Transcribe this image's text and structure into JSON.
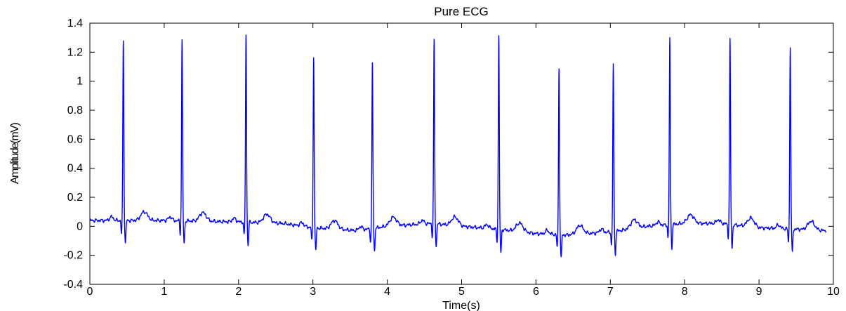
{
  "chart_data": {
    "type": "line",
    "title": "Pure ECG",
    "xlabel": "Time(s)",
    "ylabel": "Amplitude(mV)",
    "xlim": [
      0,
      10
    ],
    "ylim": [
      -0.4,
      1.4
    ],
    "x_ticks": [
      0,
      1,
      2,
      3,
      4,
      5,
      6,
      7,
      8,
      9,
      10
    ],
    "y_ticks": [
      -0.4,
      -0.2,
      0,
      0.2,
      0.4,
      0.6,
      0.8,
      1,
      1.2,
      1.4
    ],
    "x_tick_labels": [
      "0",
      "1",
      "2",
      "3",
      "4",
      "5",
      "6",
      "7",
      "8",
      "9",
      "10"
    ],
    "y_tick_labels": [
      "-0.4",
      "-0.2",
      "0",
      "0.2",
      "0.4",
      "0.6",
      "0.8",
      "1",
      "1.2",
      "1.4"
    ],
    "grid": false,
    "line_color": "#0000ff",
    "duration_s": 9.9,
    "r_peaks": [
      {
        "t": 0.45,
        "amp": 1.28
      },
      {
        "t": 1.24,
        "amp": 1.28
      },
      {
        "t": 2.1,
        "amp": 1.32
      },
      {
        "t": 3.01,
        "amp": 1.17
      },
      {
        "t": 3.8,
        "amp": 1.12
      },
      {
        "t": 4.63,
        "amp": 1.28
      },
      {
        "t": 5.5,
        "amp": 1.31
      },
      {
        "t": 6.31,
        "amp": 1.09
      },
      {
        "t": 7.04,
        "amp": 1.12
      },
      {
        "t": 7.8,
        "amp": 1.3
      },
      {
        "t": 8.61,
        "amp": 1.29
      },
      {
        "t": 9.42,
        "amp": 1.24
      }
    ],
    "baseline": [
      {
        "t": 0.0,
        "v": 0.04
      },
      {
        "t": 1.0,
        "v": 0.04
      },
      {
        "t": 2.0,
        "v": 0.03
      },
      {
        "t": 2.6,
        "v": 0.02
      },
      {
        "t": 3.0,
        "v": -0.01
      },
      {
        "t": 3.6,
        "v": -0.03
      },
      {
        "t": 4.0,
        "v": 0.0
      },
      {
        "t": 4.6,
        "v": 0.02
      },
      {
        "t": 5.0,
        "v": 0.0
      },
      {
        "t": 5.5,
        "v": -0.02
      },
      {
        "t": 6.0,
        "v": -0.05
      },
      {
        "t": 6.4,
        "v": -0.06
      },
      {
        "t": 7.0,
        "v": -0.04
      },
      {
        "t": 7.5,
        "v": 0.0
      },
      {
        "t": 8.0,
        "v": 0.02
      },
      {
        "t": 8.5,
        "v": 0.02
      },
      {
        "t": 9.0,
        "v": -0.01
      },
      {
        "t": 9.5,
        "v": -0.02
      },
      {
        "t": 9.9,
        "v": -0.03
      }
    ]
  }
}
